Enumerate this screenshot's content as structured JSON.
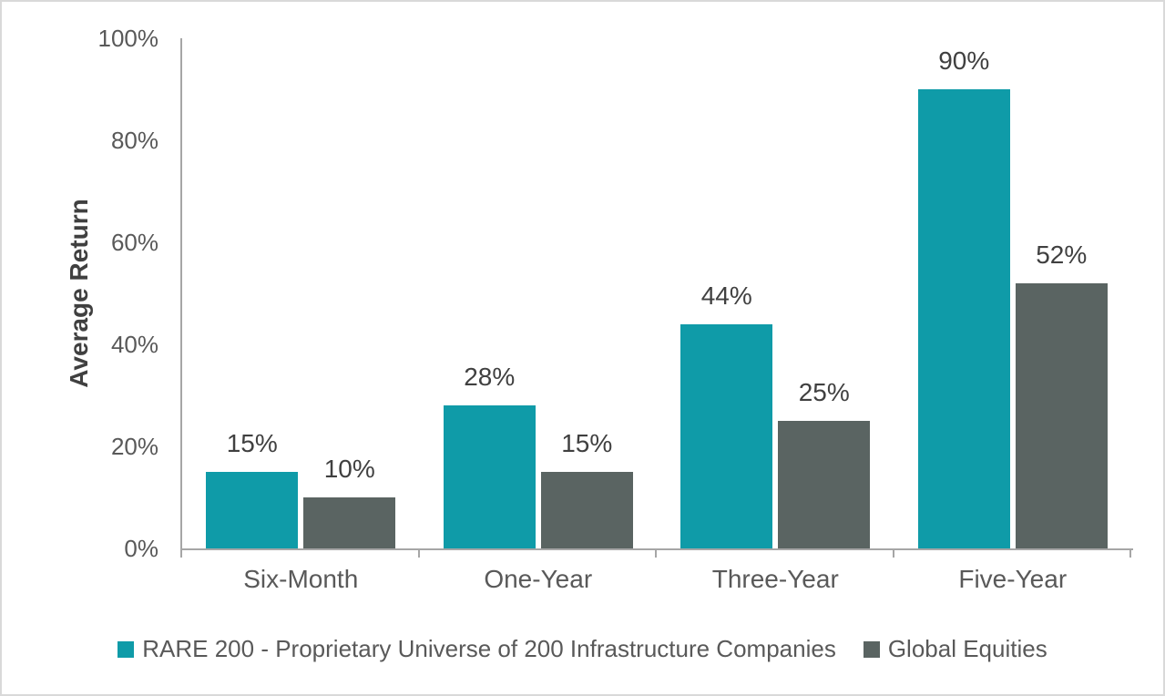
{
  "chart_data": {
    "type": "bar",
    "title": "",
    "ylabel": "Average Return",
    "xlabel": "",
    "categories": [
      "Six-Month",
      "One-Year",
      "Three-Year",
      "Five-Year"
    ],
    "series": [
      {
        "name": "RARE 200 - Proprietary Universe of 200 Infrastructure Companies",
        "color": "#0f9ba8",
        "values": [
          15,
          28,
          44,
          90
        ]
      },
      {
        "name": "Global Equities",
        "color": "#5a6462",
        "values": [
          10,
          15,
          25,
          52
        ]
      }
    ],
    "value_suffix": "%",
    "data_labels": true,
    "y_ticks": [
      "0%",
      "20%",
      "40%",
      "60%",
      "80%",
      "100%"
    ],
    "ylim": [
      0,
      100
    ],
    "grid": false,
    "legend_position": "bottom"
  },
  "colors": {
    "axis_line": "#a6a6a6",
    "tick_label_text": "#595959",
    "data_label_text": "#404040",
    "axis_title_text": "#404040",
    "page_border": "#d9d9d9",
    "background": "#ffffff"
  }
}
